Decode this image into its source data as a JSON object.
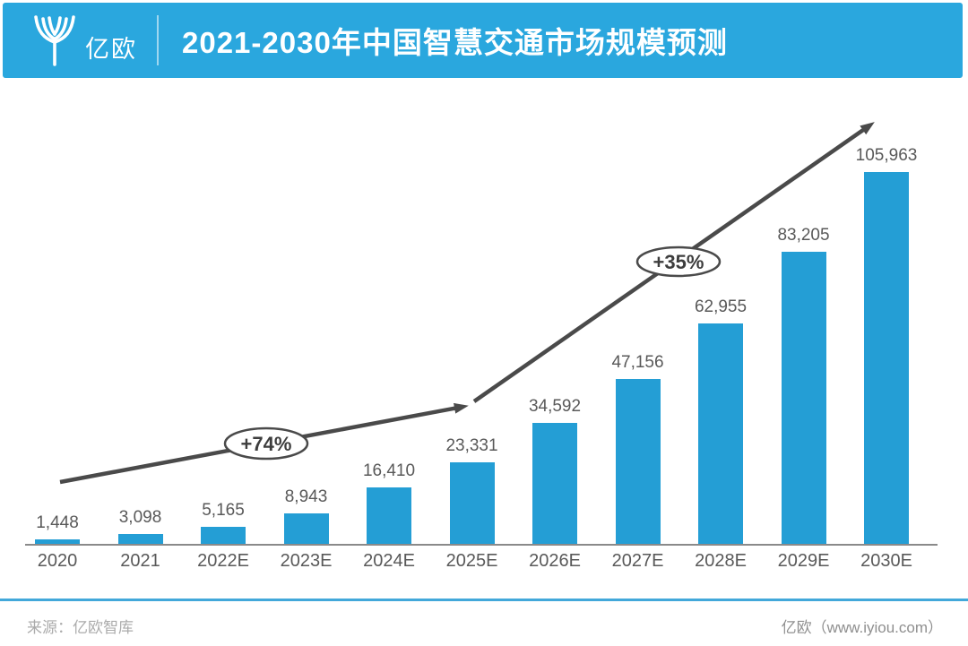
{
  "header": {
    "logo_text": "亿欧",
    "title": "2021-2030年中国智慧交通市场规模预测"
  },
  "chart_data": {
    "type": "bar",
    "title": "2021-2030年中国智慧交通市场规模预测",
    "categories": [
      "2020",
      "2021",
      "2022E",
      "2023E",
      "2024E",
      "2025E",
      "2026E",
      "2027E",
      "2028E",
      "2029E",
      "2030E"
    ],
    "values": [
      1448,
      3098,
      5165,
      8943,
      16410,
      23331,
      34592,
      47156,
      62955,
      83205,
      105963
    ],
    "value_labels": [
      "1,448",
      "3,098",
      "5,165",
      "8,943",
      "16,410",
      "23,331",
      "34,592",
      "47,156",
      "62,955",
      "83,205",
      "105,963"
    ],
    "xlabel": "",
    "ylabel": "",
    "ylim": [
      0,
      110000
    ],
    "grid": false,
    "legend": false,
    "bar_color": "#249ed5",
    "annotations": [
      {
        "label": "+74%",
        "type": "growth-rate-ellipse",
        "span": "2020-2025E"
      },
      {
        "label": "+35%",
        "type": "growth-rate-ellipse",
        "span": "2025E-2030E"
      }
    ]
  },
  "footer": {
    "source": "来源：亿欧智库",
    "site": "亿欧（www.iyiou.com）"
  },
  "colors": {
    "header_blue": "#2aa7de",
    "bar_blue": "#249ed5",
    "arrow_gray": "#4a4a4a",
    "label_gray": "#595959",
    "footer_rule_blue": "#42a8da"
  }
}
